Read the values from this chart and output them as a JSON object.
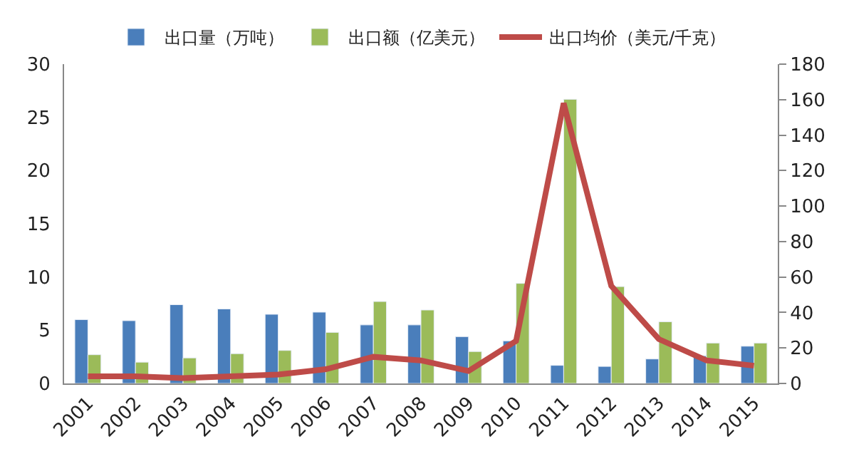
{
  "chart_data": {
    "type": "bar",
    "categories": [
      "2001",
      "2002",
      "2003",
      "2004",
      "2005",
      "2006",
      "2007",
      "2008",
      "2009",
      "2010",
      "2011",
      "2012",
      "2013",
      "2014",
      "2015"
    ],
    "series": [
      {
        "name": "出口量（万吨）",
        "color": "#4a7ebb",
        "values": [
          6.0,
          5.9,
          7.4,
          7.0,
          6.5,
          6.7,
          5.5,
          5.5,
          4.4,
          4.0,
          1.7,
          1.6,
          2.3,
          2.6,
          3.5
        ]
      },
      {
        "name": "出口额（亿美元）",
        "color": "#9bbb59",
        "values": [
          2.7,
          2.0,
          2.4,
          2.8,
          3.1,
          4.8,
          7.7,
          6.9,
          3.0,
          9.4,
          26.7,
          9.1,
          5.8,
          3.8,
          3.8
        ]
      },
      {
        "name": "出口均价（美元/千克）",
        "color": "#be4b48",
        "type": "line",
        "axis": "y2",
        "values": [
          4,
          4,
          3,
          4,
          5,
          8,
          15,
          13,
          7,
          24,
          158,
          55,
          25,
          13,
          10
        ]
      }
    ],
    "ylim": [
      0,
      30
    ],
    "yticks": [
      0,
      5,
      10,
      15,
      20,
      25,
      30
    ],
    "y2lim": [
      0,
      180
    ],
    "y2ticks": [
      0,
      20,
      40,
      60,
      80,
      100,
      120,
      140,
      160,
      180
    ],
    "legend": "top"
  }
}
